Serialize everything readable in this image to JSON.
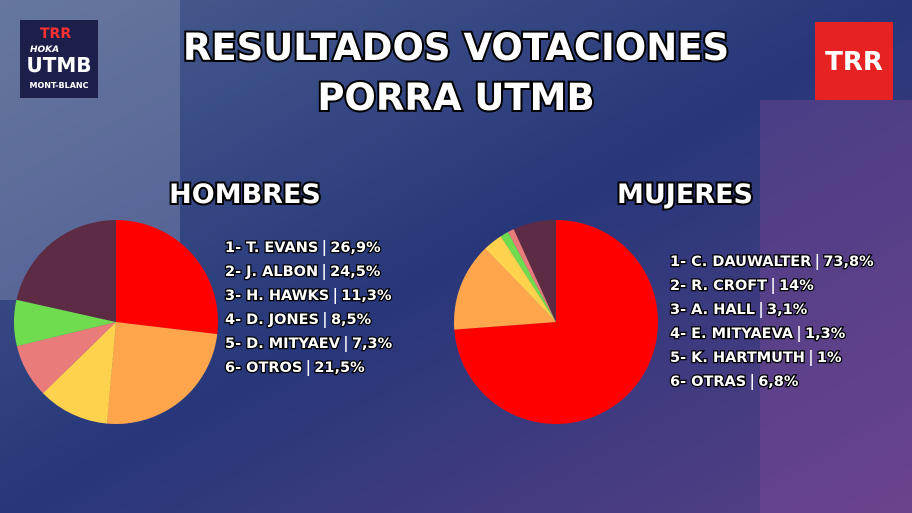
{
  "title": [
    "RESULTADOS VOTACIONES",
    "PORRA UTMB"
  ],
  "logos": {
    "left": [
      "TRR",
      "HOKA",
      "UTMB",
      "MONT-BLANC"
    ],
    "right": "TRR"
  },
  "chart_data": [
    {
      "type": "pie",
      "title": "HOMBRES",
      "categories": [
        "1- T. EVANS",
        "2- J. ALBON",
        "3- H. HAWKS",
        "4- D. JONES",
        "5- D. MITYAEV",
        "6- OTROS"
      ],
      "values": [
        26.9,
        24.5,
        11.3,
        8.5,
        7.3,
        21.5
      ],
      "value_labels": [
        "26,9%",
        "24,5%",
        "11,3%",
        "8,5%",
        "7,3%",
        "21,5%"
      ],
      "colors": [
        "#ff0000",
        "#ffa64d",
        "#ffd24d",
        "#e97b7b",
        "#6fdc4f",
        "#5e2b45"
      ]
    },
    {
      "type": "pie",
      "title": "MUJERES",
      "categories": [
        "1- C. DAUWALTER",
        "2- R. CROFT",
        "3- A. HALL",
        "4- E. MITYAEVA",
        "5- K. HARTMUTH",
        "6- OTRAS"
      ],
      "values": [
        73.8,
        14,
        3.1,
        1.3,
        1,
        6.8
      ],
      "value_labels": [
        "73,8%",
        "14%",
        "3,1%",
        "1,3%",
        "1%",
        "6,8%"
      ],
      "colors": [
        "#ff0000",
        "#ffa64d",
        "#ffd24d",
        "#6fdc4f",
        "#e97b7b",
        "#5e2b45"
      ]
    }
  ]
}
